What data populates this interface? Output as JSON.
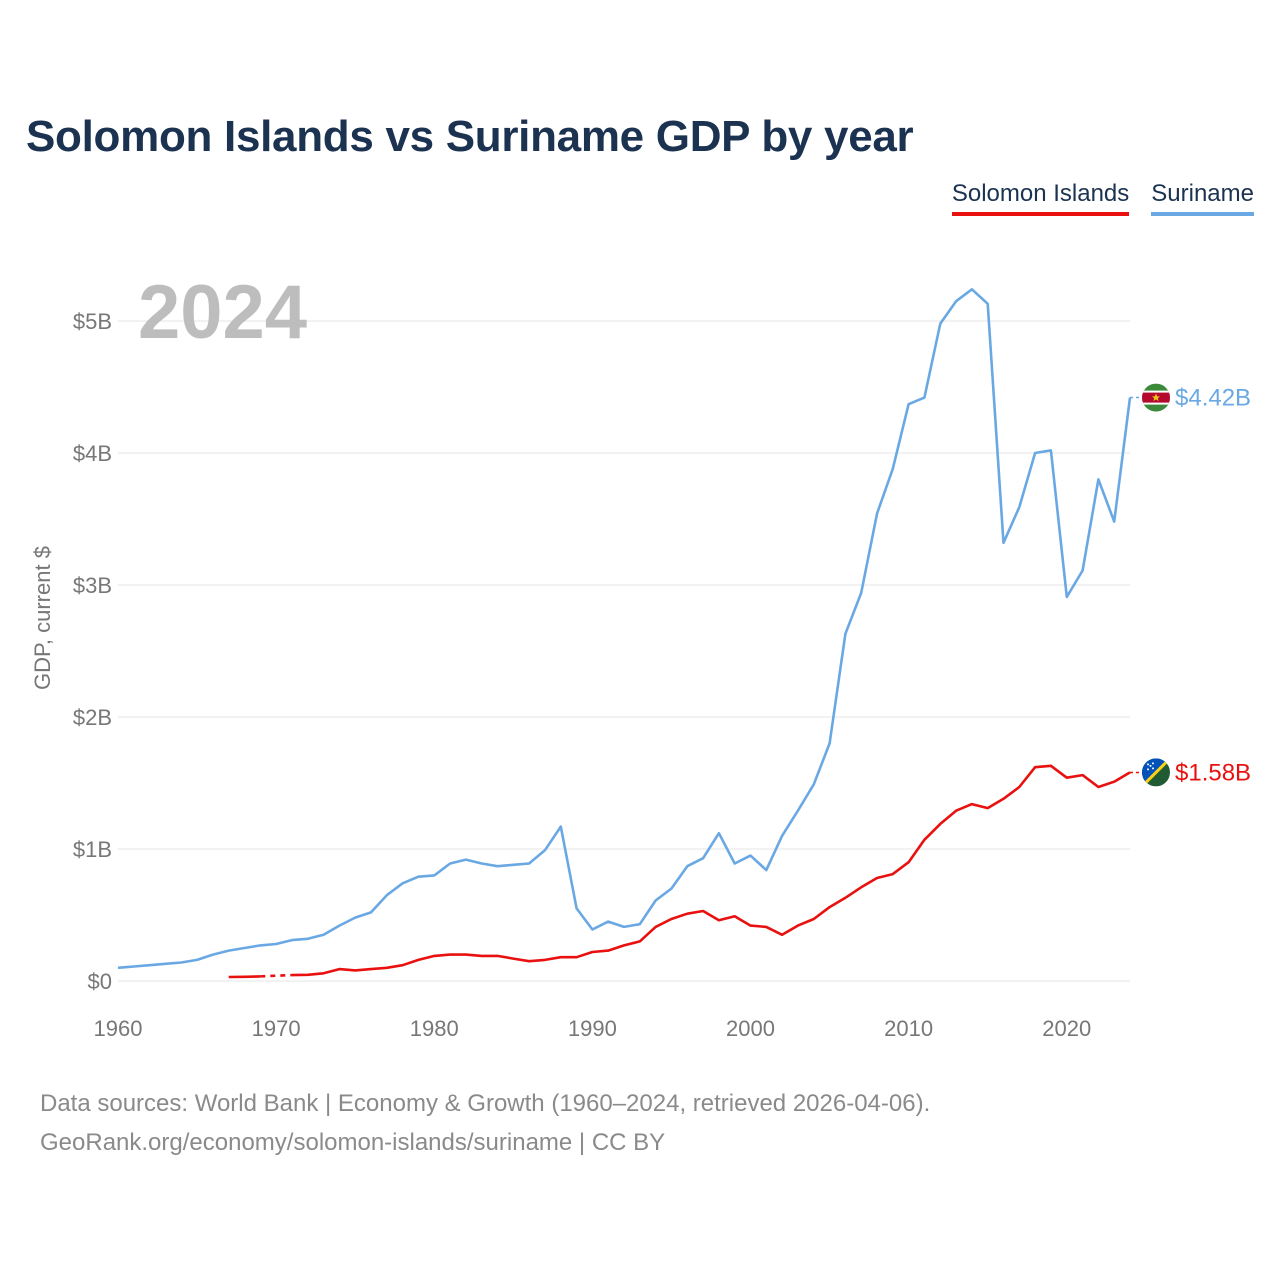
{
  "title": "Solomon Islands vs Suriname GDP by year",
  "legend": [
    {
      "name": "Solomon Islands",
      "color": "#e8110f"
    },
    {
      "name": "Suriname",
      "color": "#6aa8e4"
    }
  ],
  "year_watermark": "2024",
  "footer": {
    "line1": "Data sources: World Bank | Economy & Growth (1960–2024, retrieved 2026-04-06).",
    "line2": "GeoRank.org/economy/solomon-islands/suriname | CC BY"
  },
  "chart_data": {
    "type": "line",
    "ylabel": "GDP, current $",
    "xlim": [
      1960,
      2024
    ],
    "ylim": [
      0,
      5.5
    ],
    "x_ticks": [
      1960,
      1970,
      1980,
      1990,
      2000,
      2010,
      2020
    ],
    "y_ticks": [
      {
        "value": 0,
        "label": "$0"
      },
      {
        "value": 1,
        "label": "$1B"
      },
      {
        "value": 2,
        "label": "$2B"
      },
      {
        "value": 3,
        "label": "$3B"
      },
      {
        "value": 4,
        "label": "$4B"
      },
      {
        "value": 5,
        "label": "$5B"
      }
    ],
    "grid": true,
    "series": [
      {
        "name": "Suriname",
        "color": "#6aa8e4",
        "end_label": "$4.42B",
        "flag_icon": "suriname-flag-icon",
        "points": [
          [
            1960,
            0.1
          ],
          [
            1961,
            0.11
          ],
          [
            1962,
            0.12
          ],
          [
            1963,
            0.13
          ],
          [
            1964,
            0.14
          ],
          [
            1965,
            0.16
          ],
          [
            1966,
            0.2
          ],
          [
            1967,
            0.23
          ],
          [
            1968,
            0.25
          ],
          [
            1969,
            0.27
          ],
          [
            1970,
            0.28
          ],
          [
            1971,
            0.31
          ],
          [
            1972,
            0.32
          ],
          [
            1973,
            0.35
          ],
          [
            1974,
            0.42
          ],
          [
            1975,
            0.48
          ],
          [
            1976,
            0.52
          ],
          [
            1977,
            0.65
          ],
          [
            1978,
            0.74
          ],
          [
            1979,
            0.79
          ],
          [
            1980,
            0.8
          ],
          [
            1981,
            0.89
          ],
          [
            1982,
            0.92
          ],
          [
            1983,
            0.89
          ],
          [
            1984,
            0.87
          ],
          [
            1985,
            0.88
          ],
          [
            1986,
            0.89
          ],
          [
            1987,
            0.99
          ],
          [
            1988,
            1.17
          ],
          [
            1989,
            0.55
          ],
          [
            1990,
            0.39
          ],
          [
            1991,
            0.45
          ],
          [
            1992,
            0.41
          ],
          [
            1993,
            0.43
          ],
          [
            1994,
            0.61
          ],
          [
            1995,
            0.7
          ],
          [
            1996,
            0.87
          ],
          [
            1997,
            0.93
          ],
          [
            1998,
            1.12
          ],
          [
            1999,
            0.89
          ],
          [
            2000,
            0.95
          ],
          [
            2001,
            0.84
          ],
          [
            2002,
            1.1
          ],
          [
            2003,
            1.29
          ],
          [
            2004,
            1.49
          ],
          [
            2005,
            1.8
          ],
          [
            2006,
            2.63
          ],
          [
            2007,
            2.94
          ],
          [
            2008,
            3.54
          ],
          [
            2009,
            3.88
          ],
          [
            2010,
            4.37
          ],
          [
            2011,
            4.42
          ],
          [
            2012,
            4.98
          ],
          [
            2013,
            5.15
          ],
          [
            2014,
            5.24
          ],
          [
            2015,
            5.13
          ],
          [
            2016,
            3.32
          ],
          [
            2017,
            3.59
          ],
          [
            2018,
            4.0
          ],
          [
            2019,
            4.02
          ],
          [
            2020,
            2.91
          ],
          [
            2021,
            3.11
          ],
          [
            2022,
            3.8
          ],
          [
            2023,
            3.48
          ],
          [
            2024,
            4.42
          ]
        ]
      },
      {
        "name": "Solomon Islands",
        "color": "#e8110f",
        "end_label": "$1.58B",
        "flag_icon": "solomon-islands-flag-icon",
        "gap_years": [
          1970
        ],
        "points": [
          [
            1967,
            0.03
          ],
          [
            1968,
            0.032
          ],
          [
            1969,
            0.035
          ],
          [
            1970,
            0.04
          ],
          [
            1971,
            0.045
          ],
          [
            1972,
            0.047
          ],
          [
            1973,
            0.058
          ],
          [
            1974,
            0.09
          ],
          [
            1975,
            0.08
          ],
          [
            1976,
            0.09
          ],
          [
            1977,
            0.1
          ],
          [
            1978,
            0.12
          ],
          [
            1979,
            0.16
          ],
          [
            1980,
            0.19
          ],
          [
            1981,
            0.2
          ],
          [
            1982,
            0.2
          ],
          [
            1983,
            0.19
          ],
          [
            1984,
            0.19
          ],
          [
            1985,
            0.17
          ],
          [
            1986,
            0.15
          ],
          [
            1987,
            0.16
          ],
          [
            1988,
            0.18
          ],
          [
            1989,
            0.18
          ],
          [
            1990,
            0.22
          ],
          [
            1991,
            0.23
          ],
          [
            1992,
            0.27
          ],
          [
            1993,
            0.3
          ],
          [
            1994,
            0.41
          ],
          [
            1995,
            0.47
          ],
          [
            1996,
            0.51
          ],
          [
            1997,
            0.53
          ],
          [
            1998,
            0.46
          ],
          [
            1999,
            0.49
          ],
          [
            2000,
            0.42
          ],
          [
            2001,
            0.41
          ],
          [
            2002,
            0.35
          ],
          [
            2003,
            0.42
          ],
          [
            2004,
            0.47
          ],
          [
            2005,
            0.56
          ],
          [
            2006,
            0.63
          ],
          [
            2007,
            0.71
          ],
          [
            2008,
            0.78
          ],
          [
            2009,
            0.81
          ],
          [
            2010,
            0.9
          ],
          [
            2011,
            1.07
          ],
          [
            2012,
            1.19
          ],
          [
            2013,
            1.29
          ],
          [
            2014,
            1.34
          ],
          [
            2015,
            1.31
          ],
          [
            2016,
            1.38
          ],
          [
            2017,
            1.47
          ],
          [
            2018,
            1.62
          ],
          [
            2019,
            1.63
          ],
          [
            2020,
            1.54
          ],
          [
            2021,
            1.56
          ],
          [
            2022,
            1.47
          ],
          [
            2023,
            1.51
          ],
          [
            2024,
            1.58
          ]
        ]
      }
    ]
  }
}
